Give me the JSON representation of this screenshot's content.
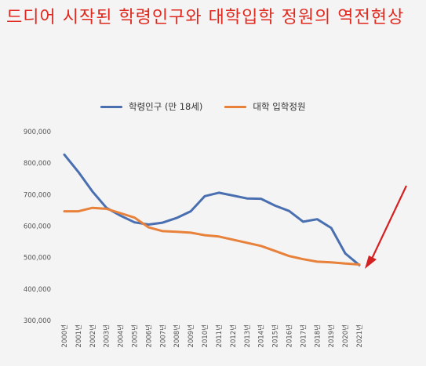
{
  "title": "드디어 시작된 학령인구와 대학입학 정원의 역전현상",
  "colors": {
    "title": "#e0281e",
    "series_school_age": "#4a6fb1",
    "series_quota": "#e8813a",
    "arrow": "#d42020"
  },
  "legend": {
    "school_age_label": "학령인구 (만 18세)",
    "quota_label": "대학 입학정원"
  },
  "chart_data": {
    "type": "line",
    "title": "",
    "xlabel": "",
    "ylabel": "",
    "ylim": [
      300000,
      900000
    ],
    "yticks": [
      "300,000",
      "400,000",
      "500,000",
      "600,000",
      "700,000",
      "800,000",
      "900,000"
    ],
    "ytick_values": [
      300000,
      400000,
      500000,
      600000,
      700000,
      800000,
      900000
    ],
    "categories": [
      "2000년",
      "2001년",
      "2002년",
      "2003년",
      "2004년",
      "2005년",
      "2006년",
      "2007년",
      "2008년",
      "2009년",
      "2010년",
      "2011년",
      "2012년",
      "2013년",
      "2014년",
      "2015년",
      "2016년",
      "2017년",
      "2018년",
      "2019년",
      "2020년",
      "2021년"
    ],
    "series": [
      {
        "name": "학령인구 (만 18세)",
        "color": "#4a6fb1",
        "values": [
          827000,
          772000,
          710000,
          658000,
          633000,
          612000,
          605000,
          611000,
          626000,
          647000,
          695000,
          706000,
          697000,
          688000,
          687000,
          665000,
          648000,
          614000,
          622000,
          594000,
          513000,
          476000
        ]
      },
      {
        "name": "대학 입학정원",
        "color": "#e8813a",
        "values": [
          647000,
          647000,
          658000,
          655000,
          641000,
          627000,
          596000,
          584000,
          582000,
          579000,
          571000,
          567000,
          557000,
          547000,
          537000,
          521000,
          505000,
          495000,
          487000,
          485000,
          481000,
          478000
        ]
      }
    ],
    "grid": false,
    "legend_position": "top"
  }
}
